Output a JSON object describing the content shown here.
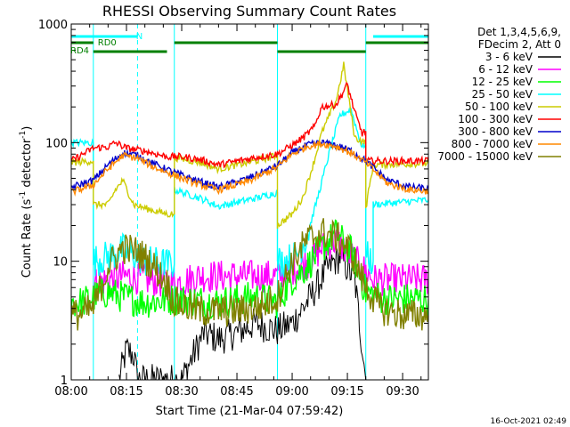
{
  "chart_data": {
    "type": "line",
    "title": "RHESSI Observing Summary Count Rates",
    "xlabel": "Start Time (21-Mar-04 07:59:42)",
    "ylabel_main": "Count Rate (s",
    "ylabel_sup1": "-1",
    "ylabel_mid": " detector",
    "ylabel_sup2": "-1",
    "ylabel_end": ")",
    "yscale": "log",
    "ylim": [
      1,
      1000
    ],
    "xlim_minutes": [
      0,
      97
    ],
    "x_tick_minutes": [
      0,
      15,
      30,
      45,
      60,
      75,
      90
    ],
    "x_tick_labels": [
      "08:00",
      "08:15",
      "08:30",
      "08:45",
      "09:00",
      "09:15",
      "09:30"
    ],
    "y_tick_values": [
      1,
      10,
      100,
      1000
    ],
    "y_tick_labels": [
      "1",
      "10",
      "100",
      "1000"
    ],
    "legend_header": [
      "Det 1,3,4,5,6,9,",
      "FDecim 2, Att 0"
    ],
    "legend_position": "right",
    "timestamp": "16-Oct-2021 02:49",
    "state_bars": {
      "N_label": "N",
      "RD0_label": "RD0",
      "RD4_label": "RD4",
      "N_color": "#00ffff",
      "bar_color": "#008000",
      "N": [
        [
          0,
          18
        ],
        [
          82,
          97
        ]
      ],
      "RD0": [
        [
          0,
          6
        ],
        [
          28,
          56
        ],
        [
          80,
          97
        ]
      ],
      "RD4": [
        [
          6,
          26
        ],
        [
          56,
          80
        ]
      ]
    },
    "night_lines_minutes": [
      18,
      97
    ],
    "day_edges_minutes": [
      6,
      28,
      56,
      80
    ],
    "series": [
      {
        "name": "3 - 6 keV",
        "color": "#000000",
        "points": [
          [
            13,
            1
          ],
          [
            15,
            1.8
          ],
          [
            17,
            1.6
          ],
          [
            18,
            1
          ],
          [
            30,
            1
          ],
          [
            36,
            2.5
          ],
          [
            40,
            2.2
          ],
          [
            45,
            2.5
          ],
          [
            50,
            3
          ],
          [
            56,
            2.6
          ],
          [
            60,
            3
          ],
          [
            65,
            5
          ],
          [
            70,
            9
          ],
          [
            73,
            11
          ],
          [
            77,
            7
          ],
          [
            80,
            1
          ]
        ]
      },
      {
        "name": "6 - 12 keV",
        "color": "#ff00ff",
        "points": [
          [
            6,
            6.5
          ],
          [
            10,
            7
          ],
          [
            15,
            7.5
          ],
          [
            20,
            7
          ],
          [
            28,
            6.5
          ],
          [
            35,
            7.5
          ],
          [
            45,
            7.5
          ],
          [
            56,
            7.5
          ],
          [
            60,
            8.5
          ],
          [
            65,
            10
          ],
          [
            68,
            13
          ],
          [
            72,
            15
          ],
          [
            75,
            12
          ],
          [
            78,
            9.5
          ],
          [
            82,
            7
          ],
          [
            90,
            7
          ],
          [
            97,
            7
          ]
        ]
      },
      {
        "name": "12 - 25 keV",
        "color": "#00ff00",
        "points": [
          [
            0,
            4.5
          ],
          [
            3,
            4.5
          ],
          [
            6,
            5
          ],
          [
            10,
            5.5
          ],
          [
            14,
            5
          ],
          [
            20,
            4.5
          ],
          [
            28,
            4.8
          ],
          [
            40,
            4.5
          ],
          [
            50,
            5
          ],
          [
            56,
            4.5
          ],
          [
            60,
            7
          ],
          [
            64,
            9
          ],
          [
            68,
            13
          ],
          [
            72,
            17
          ],
          [
            76,
            12
          ],
          [
            80,
            5.5
          ],
          [
            85,
            4.8
          ],
          [
            97,
            4.8
          ]
        ]
      },
      {
        "name": "25 - 50 keV",
        "color": "#00ffff",
        "points": [
          [
            0,
            100
          ],
          [
            6,
            100
          ],
          [
            6,
            10
          ],
          [
            10,
            11
          ],
          [
            14,
            12.5
          ],
          [
            18,
            11
          ],
          [
            20,
            10
          ],
          [
            26,
            9.5
          ],
          [
            28,
            9.5
          ],
          [
            28,
            40
          ],
          [
            35,
            34
          ],
          [
            40,
            29
          ],
          [
            50,
            34
          ],
          [
            56,
            38
          ],
          [
            56,
            10
          ],
          [
            58,
            10
          ],
          [
            61,
            11
          ],
          [
            64,
            16
          ],
          [
            67,
            35
          ],
          [
            70,
            80
          ],
          [
            73,
            170
          ],
          [
            76,
            190
          ],
          [
            79,
            90
          ],
          [
            80,
            100
          ],
          [
            80,
            11
          ],
          [
            82,
            10
          ],
          [
            82,
            30
          ],
          [
            97,
            33
          ]
        ]
      },
      {
        "name": "50 - 100 keV",
        "color": "#cccc00",
        "points": [
          [
            0,
            68
          ],
          [
            6,
            70
          ],
          [
            6,
            30
          ],
          [
            10,
            30
          ],
          [
            12,
            40
          ],
          [
            14,
            48
          ],
          [
            17,
            30
          ],
          [
            20,
            28
          ],
          [
            26,
            25
          ],
          [
            28,
            25
          ],
          [
            28,
            75
          ],
          [
            35,
            68
          ],
          [
            40,
            60
          ],
          [
            50,
            70
          ],
          [
            56,
            78
          ],
          [
            56,
            20
          ],
          [
            60,
            25
          ],
          [
            63,
            35
          ],
          [
            66,
            70
          ],
          [
            68,
            120
          ],
          [
            72,
            230
          ],
          [
            74,
            450
          ],
          [
            77,
            110
          ],
          [
            80,
            100
          ],
          [
            80,
            28
          ],
          [
            82,
            65
          ],
          [
            97,
            67
          ]
        ]
      },
      {
        "name": "100 - 300 keV",
        "color": "#ff0000",
        "points": [
          [
            0,
            70
          ],
          [
            6,
            90
          ],
          [
            10,
            92
          ],
          [
            12,
            100
          ],
          [
            15,
            90
          ],
          [
            20,
            85
          ],
          [
            26,
            76
          ],
          [
            30,
            76
          ],
          [
            35,
            72
          ],
          [
            40,
            65
          ],
          [
            50,
            75
          ],
          [
            56,
            80
          ],
          [
            60,
            95
          ],
          [
            63,
            110
          ],
          [
            66,
            135
          ],
          [
            68,
            200
          ],
          [
            72,
            210
          ],
          [
            75,
            310
          ],
          [
            77,
            180
          ],
          [
            79,
            120
          ],
          [
            80,
            125
          ],
          [
            80,
            70
          ],
          [
            83,
            70
          ],
          [
            97,
            70
          ]
        ]
      },
      {
        "name": "300 - 800 keV",
        "color": "#0000cc",
        "points": [
          [
            0,
            42
          ],
          [
            6,
            48
          ],
          [
            10,
            65
          ],
          [
            14,
            82
          ],
          [
            18,
            78
          ],
          [
            22,
            67
          ],
          [
            28,
            56
          ],
          [
            34,
            48
          ],
          [
            40,
            42
          ],
          [
            48,
            50
          ],
          [
            56,
            64
          ],
          [
            60,
            82
          ],
          [
            64,
            95
          ],
          [
            68,
            100
          ],
          [
            72,
            95
          ],
          [
            76,
            85
          ],
          [
            80,
            70
          ],
          [
            86,
            48
          ],
          [
            92,
            42
          ],
          [
            97,
            41
          ]
        ]
      },
      {
        "name": "800 - 7000 keV",
        "color": "#ff8800",
        "points": [
          [
            0,
            38
          ],
          [
            6,
            44
          ],
          [
            10,
            60
          ],
          [
            14,
            78
          ],
          [
            18,
            74
          ],
          [
            22,
            63
          ],
          [
            28,
            53
          ],
          [
            34,
            45
          ],
          [
            40,
            40
          ],
          [
            48,
            47
          ],
          [
            56,
            62
          ],
          [
            60,
            80
          ],
          [
            64,
            93
          ],
          [
            68,
            98
          ],
          [
            72,
            93
          ],
          [
            76,
            82
          ],
          [
            80,
            68
          ],
          [
            86,
            45
          ],
          [
            92,
            40
          ],
          [
            97,
            39
          ]
        ]
      },
      {
        "name": "7000 - 15000 keV",
        "color": "#808000",
        "points": [
          [
            0,
            3.5
          ],
          [
            3,
            3.6
          ],
          [
            6,
            4
          ],
          [
            10,
            9
          ],
          [
            14,
            13
          ],
          [
            18,
            12
          ],
          [
            22,
            9.5
          ],
          [
            26,
            6.5
          ],
          [
            28,
            4.5
          ],
          [
            35,
            3.8
          ],
          [
            45,
            3.8
          ],
          [
            52,
            4.2
          ],
          [
            56,
            5
          ],
          [
            60,
            10
          ],
          [
            64,
            15
          ],
          [
            68,
            17.5
          ],
          [
            72,
            16
          ],
          [
            76,
            12
          ],
          [
            80,
            6
          ],
          [
            84,
            4
          ],
          [
            90,
            3.5
          ],
          [
            97,
            3.5
          ]
        ]
      }
    ]
  }
}
